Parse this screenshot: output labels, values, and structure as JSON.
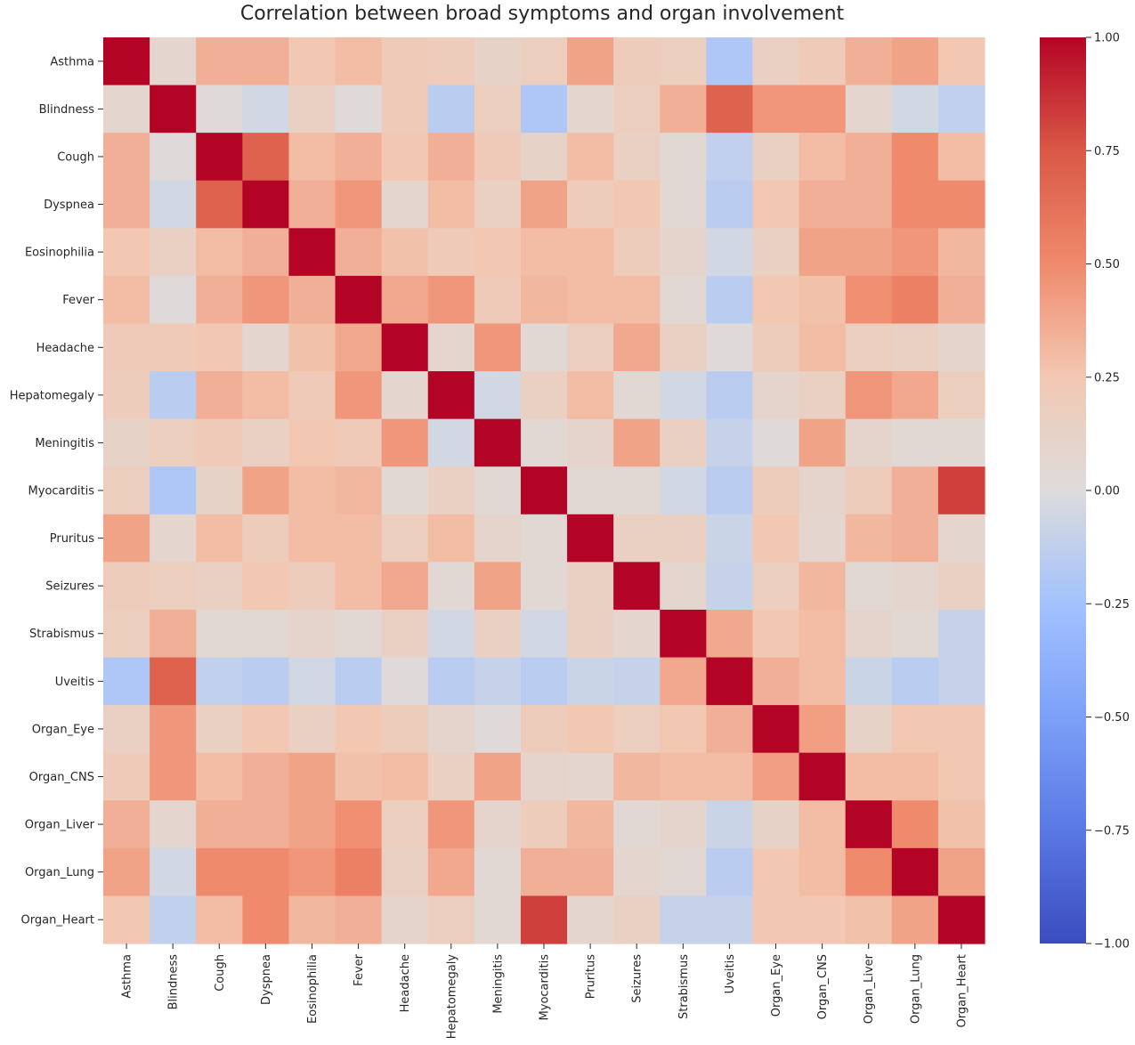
{
  "chart_data": {
    "type": "heatmap",
    "title": "Correlation between broad symptoms and organ involvement",
    "xlabel": "",
    "ylabel": "",
    "labels": [
      "Asthma",
      "Blindness",
      "Cough",
      "Dyspnea",
      "Eosinophilia",
      "Fever",
      "Headache",
      "Hepatomegaly",
      "Meningitis",
      "Myocarditis",
      "Pruritus",
      "Seizures",
      "Strabismus",
      "Uveitis",
      "Organ_Eye",
      "Organ_CNS",
      "Organ_Liver",
      "Organ_Lung",
      "Organ_Heart"
    ],
    "values": [
      [
        1.0,
        0.08,
        0.35,
        0.35,
        0.25,
        0.3,
        0.22,
        0.2,
        0.12,
        0.18,
        0.4,
        0.2,
        0.18,
        -0.2,
        0.15,
        0.22,
        0.35,
        0.4,
        0.25
      ],
      [
        0.08,
        1.0,
        0.02,
        -0.05,
        0.15,
        0.02,
        0.22,
        -0.15,
        0.18,
        -0.2,
        0.08,
        0.18,
        0.35,
        0.7,
        0.45,
        0.45,
        0.08,
        -0.05,
        -0.12
      ],
      [
        0.35,
        0.02,
        1.0,
        0.7,
        0.3,
        0.35,
        0.25,
        0.35,
        0.22,
        0.12,
        0.3,
        0.15,
        0.05,
        -0.12,
        0.15,
        0.3,
        0.35,
        0.5,
        0.3
      ],
      [
        0.35,
        -0.05,
        0.7,
        1.0,
        0.35,
        0.45,
        0.08,
        0.3,
        0.15,
        0.4,
        0.2,
        0.25,
        0.05,
        -0.15,
        0.25,
        0.35,
        0.35,
        0.5,
        0.5
      ],
      [
        0.25,
        0.15,
        0.3,
        0.35,
        1.0,
        0.35,
        0.28,
        0.22,
        0.25,
        0.3,
        0.3,
        0.2,
        0.1,
        -0.05,
        0.15,
        0.4,
        0.4,
        0.45,
        0.32
      ],
      [
        0.3,
        0.02,
        0.35,
        0.45,
        0.35,
        1.0,
        0.38,
        0.45,
        0.22,
        0.32,
        0.3,
        0.3,
        0.05,
        -0.15,
        0.25,
        0.28,
        0.48,
        0.55,
        0.35
      ],
      [
        0.22,
        0.22,
        0.25,
        0.08,
        0.28,
        0.38,
        1.0,
        0.08,
        0.45,
        0.05,
        0.18,
        0.38,
        0.15,
        0.02,
        0.2,
        0.3,
        0.18,
        0.15,
        0.1
      ],
      [
        0.2,
        -0.15,
        0.35,
        0.3,
        0.22,
        0.45,
        0.08,
        1.0,
        -0.05,
        0.15,
        0.3,
        0.05,
        -0.05,
        -0.15,
        0.1,
        0.15,
        0.45,
        0.38,
        0.18
      ],
      [
        0.12,
        0.18,
        0.22,
        0.15,
        0.25,
        0.22,
        0.45,
        -0.05,
        1.0,
        0.05,
        0.1,
        0.4,
        0.15,
        -0.1,
        0.02,
        0.4,
        0.1,
        0.05,
        0.05
      ],
      [
        0.18,
        -0.2,
        0.12,
        0.4,
        0.3,
        0.32,
        0.05,
        0.15,
        0.05,
        1.0,
        0.05,
        0.05,
        -0.05,
        -0.15,
        0.2,
        0.1,
        0.2,
        0.35,
        0.82
      ],
      [
        0.4,
        0.08,
        0.3,
        0.2,
        0.3,
        0.3,
        0.18,
        0.3,
        0.1,
        0.05,
        1.0,
        0.15,
        0.15,
        -0.08,
        0.25,
        0.08,
        0.32,
        0.35,
        0.08
      ],
      [
        0.2,
        0.18,
        0.15,
        0.25,
        0.2,
        0.3,
        0.38,
        0.05,
        0.4,
        0.05,
        0.15,
        1.0,
        0.08,
        -0.1,
        0.18,
        0.32,
        0.05,
        0.08,
        0.15
      ],
      [
        0.18,
        0.35,
        0.05,
        0.05,
        0.1,
        0.05,
        0.15,
        -0.05,
        0.15,
        -0.05,
        0.15,
        0.08,
        1.0,
        0.38,
        0.25,
        0.3,
        0.1,
        0.05,
        -0.1
      ],
      [
        -0.2,
        0.7,
        -0.12,
        -0.15,
        -0.05,
        -0.15,
        0.02,
        -0.15,
        -0.1,
        -0.15,
        -0.08,
        -0.1,
        0.38,
        1.0,
        0.35,
        0.3,
        -0.08,
        -0.15,
        -0.1
      ],
      [
        0.15,
        0.45,
        0.15,
        0.25,
        0.15,
        0.25,
        0.2,
        0.1,
        0.02,
        0.2,
        0.25,
        0.18,
        0.25,
        0.35,
        1.0,
        0.42,
        0.12,
        0.25,
        0.25
      ],
      [
        0.22,
        0.45,
        0.3,
        0.35,
        0.4,
        0.28,
        0.3,
        0.15,
        0.4,
        0.1,
        0.08,
        0.32,
        0.3,
        0.3,
        0.42,
        1.0,
        0.3,
        0.3,
        0.25
      ],
      [
        0.35,
        0.08,
        0.35,
        0.35,
        0.4,
        0.48,
        0.18,
        0.45,
        0.1,
        0.2,
        0.32,
        0.05,
        0.1,
        -0.08,
        0.12,
        0.3,
        1.0,
        0.5,
        0.28
      ],
      [
        0.4,
        -0.05,
        0.5,
        0.5,
        0.45,
        0.55,
        0.15,
        0.38,
        0.05,
        0.35,
        0.35,
        0.08,
        0.05,
        -0.15,
        0.25,
        0.3,
        0.5,
        1.0,
        0.4
      ],
      [
        0.25,
        -0.12,
        0.3,
        0.5,
        0.32,
        0.35,
        0.1,
        0.18,
        0.05,
        0.82,
        0.08,
        0.15,
        -0.1,
        -0.1,
        0.25,
        0.25,
        0.28,
        0.4,
        1.0
      ]
    ],
    "vmin": -1.0,
    "vmax": 1.0,
    "colormap": "coolwarm",
    "colorbar_ticks": [
      "1.00",
      "0.75",
      "0.50",
      "0.25",
      "0.00",
      "−0.25",
      "−0.50",
      "−0.75",
      "−1.00"
    ],
    "colorbar_tick_values": [
      1.0,
      0.75,
      0.5,
      0.25,
      0.0,
      -0.25,
      -0.5,
      -0.75,
      -1.0
    ],
    "colors": {
      "low": "#3b4cc0",
      "mid": "#dddddd",
      "high": "#b40426"
    }
  }
}
